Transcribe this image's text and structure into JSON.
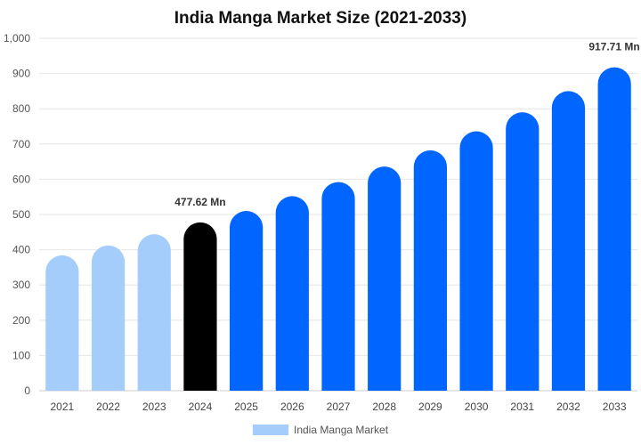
{
  "chart_data": {
    "type": "bar",
    "title": "India Manga Market Size (2021-2033)",
    "xlabel": "",
    "ylabel": "",
    "categories": [
      "2021",
      "2022",
      "2023",
      "2024",
      "2025",
      "2026",
      "2027",
      "2028",
      "2029",
      "2030",
      "2031",
      "2032",
      "2033"
    ],
    "series": [
      {
        "name": "India Manga Market",
        "values": [
          384,
          412,
          444,
          477.62,
          510,
          552,
          592,
          636,
          682,
          736,
          790,
          850,
          917.71
        ]
      }
    ],
    "bar_colors": [
      "#a4cdfc",
      "#a4cdfc",
      "#a4cdfc",
      "#000000",
      "#0066ff",
      "#0066ff",
      "#0066ff",
      "#0066ff",
      "#0066ff",
      "#0066ff",
      "#0066ff",
      "#0066ff",
      "#0066ff"
    ],
    "data_labels": [
      {
        "category": "2024",
        "text": "477.62 Mn"
      },
      {
        "category": "2033",
        "text": "917.71 Mn"
      }
    ],
    "yticks": [
      "0",
      "100",
      "200",
      "300",
      "400",
      "500",
      "600",
      "700",
      "800",
      "900",
      "1,000"
    ],
    "ylim": [
      0,
      1000
    ],
    "grid": true,
    "legend": {
      "position": "bottom",
      "label": "India Manga Market",
      "color": "#a4cdfc"
    }
  }
}
